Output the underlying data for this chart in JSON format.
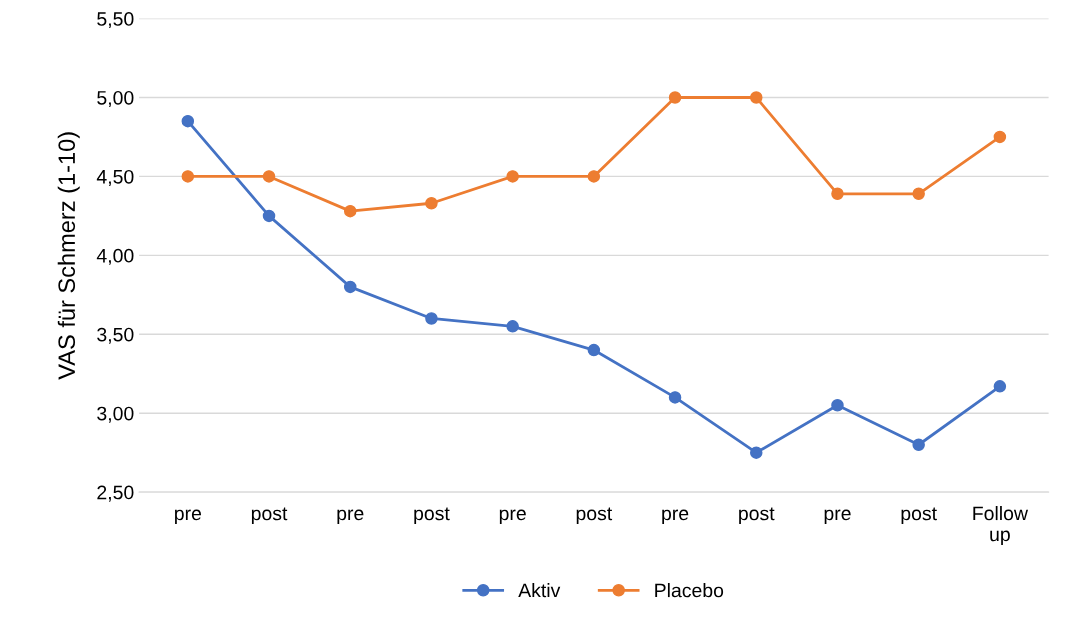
{
  "chart_data": {
    "type": "line",
    "ylabel": "VAS für Schmerz (1-10)",
    "categories": [
      "pre",
      "post",
      "pre",
      "post",
      "pre",
      "post",
      "pre",
      "post",
      "pre",
      "post",
      "Follow up"
    ],
    "series": [
      {
        "name": "Aktiv",
        "color": "#4472c4",
        "values": [
          4.85,
          4.25,
          3.8,
          3.6,
          3.55,
          3.4,
          3.1,
          2.75,
          3.05,
          2.8,
          3.17
        ]
      },
      {
        "name": "Placebo",
        "color": "#ed7d31",
        "values": [
          4.5,
          4.5,
          4.28,
          4.33,
          4.5,
          4.5,
          5.0,
          5.0,
          4.39,
          4.39,
          4.75
        ]
      }
    ],
    "ylim": [
      2.5,
      5.5
    ],
    "yticks": [
      {
        "value": 2.5,
        "label": "2,50"
      },
      {
        "value": 3.0,
        "label": "3,00"
      },
      {
        "value": 3.5,
        "label": "3,50"
      },
      {
        "value": 4.0,
        "label": "4,00"
      },
      {
        "value": 4.5,
        "label": "4,50"
      },
      {
        "value": 5.0,
        "label": "5,00"
      },
      {
        "value": 5.5,
        "label": "5,50"
      }
    ],
    "grid": "y",
    "legend": "bottom",
    "marker": "circle",
    "line_style": "solid"
  }
}
